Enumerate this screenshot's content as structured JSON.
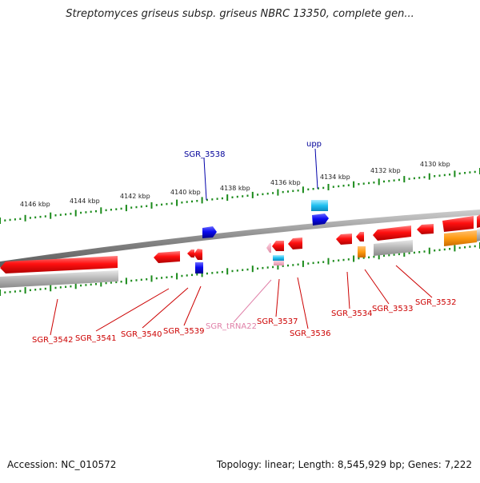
{
  "title": "Streptomyces griseus subsp. griseus NBRC 13350, complete gen...",
  "accession": "Accession: NC_010572",
  "topology": "Topology: linear; Length: 8,545,929 bp; Genes: 7,222",
  "colors": {
    "forward_gene": "#0000dd",
    "reverse_gene": "#ee0000",
    "trna": "#f4a0c0",
    "rrna_cyan": "#2ec8f0",
    "orange_track": "#ff9a1a",
    "grey_track": "#b0b0b0",
    "scale_ticks": "#1a8a1a",
    "label_forward": "#000099",
    "label_reverse": "#cc0000",
    "label_trna": "#e080a8"
  },
  "scale_labels": [
    "4146 kbp",
    "4144 kbp",
    "4142 kbp",
    "4140 kbp",
    "4138 kbp",
    "4136 kbp",
    "4134 kbp",
    "4132 kbp",
    "4130 kbp"
  ],
  "upper_gene_labels": [
    "SGR_3538",
    "upp"
  ],
  "lower_gene_labels": [
    "SGR_3542",
    "SGR_3541",
    "SGR_3540",
    "SGR_3539",
    "SGR_tRNA22",
    "SGR_3537",
    "SGR_3536",
    "SGR_3534",
    "SGR_3533",
    "SGR_3532"
  ]
}
